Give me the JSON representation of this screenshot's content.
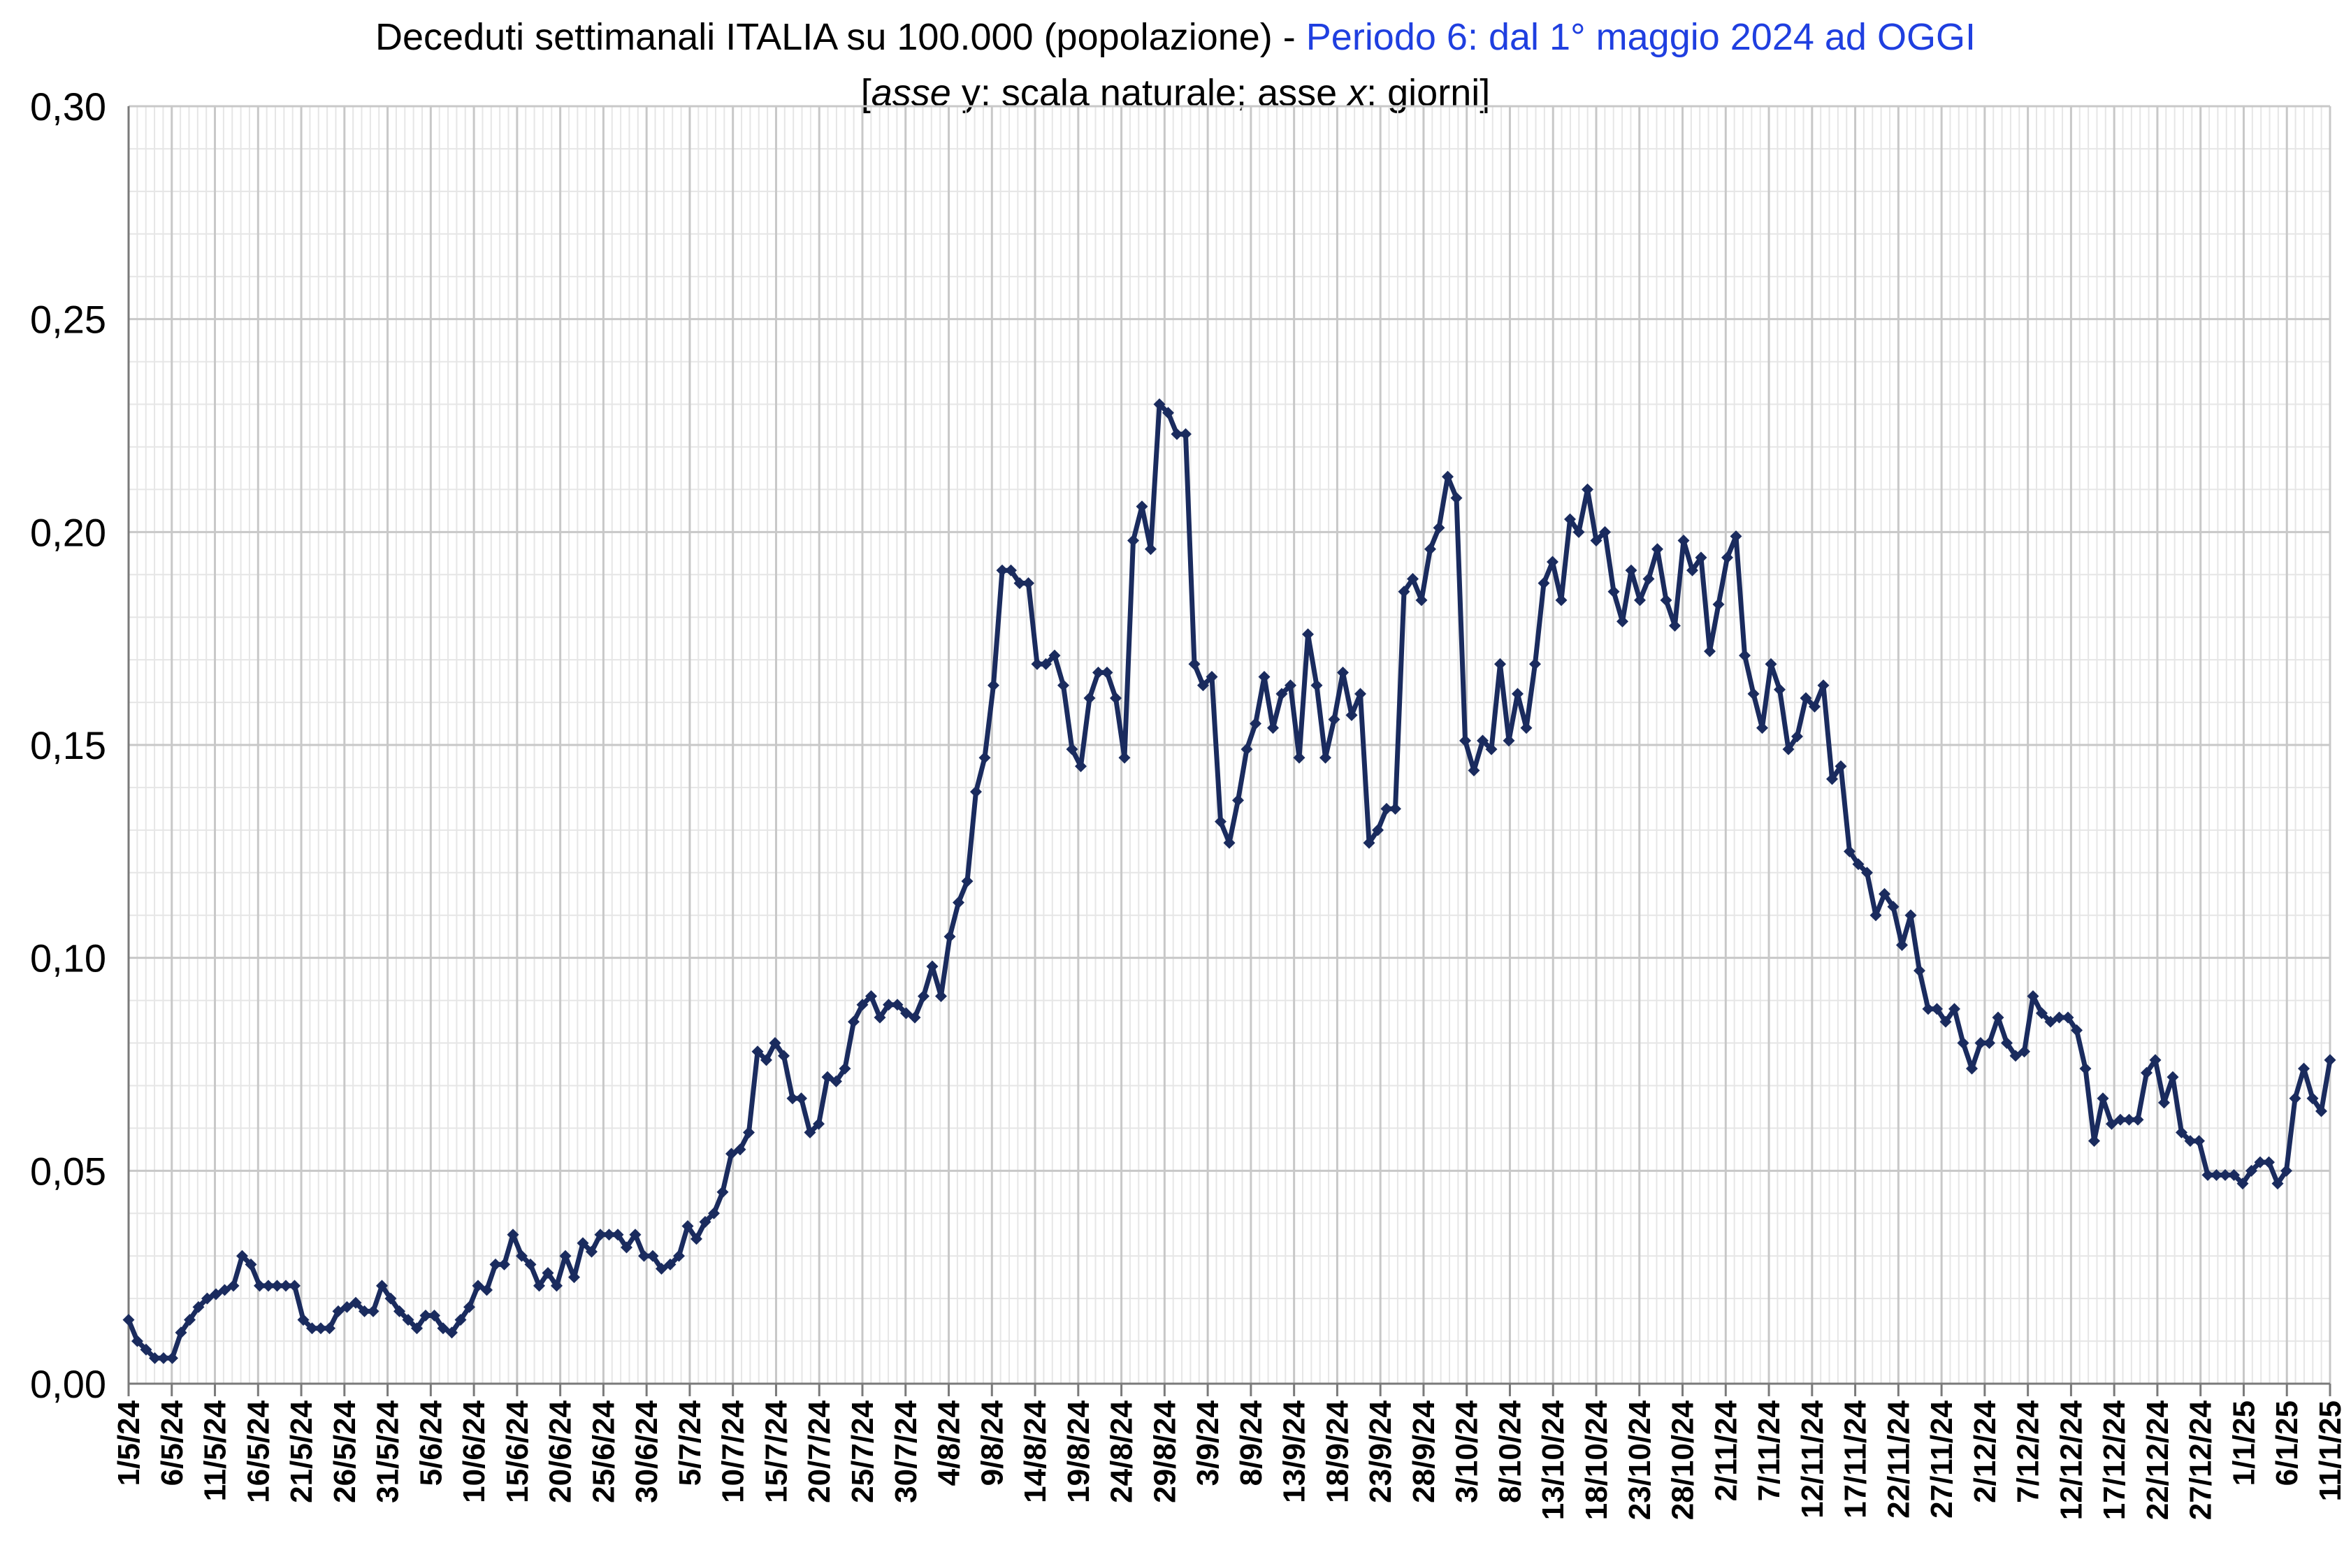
{
  "title": {
    "line1_main": "Deceduti settimanali ITALIA su 100.000 (popolazione) - ",
    "line1_accent": "Periodo 6: dal 1° maggio 2024 ad OGGI",
    "line2_open": "[",
    "line2_asse_y": "asse",
    "line2_mid": " y: scala naturale; asse ",
    "line2_x": "x",
    "line2_end": ": giorni]"
  },
  "colors": {
    "line": "#1a2b5e",
    "accent": "#1f3fe0",
    "grid_major": "#c8c8c8",
    "grid_minor": "#e6e6e6",
    "axis": "#7a7a7a"
  },
  "chart_data": {
    "type": "line",
    "xlabel": "",
    "ylabel": "",
    "x_start": "1/5/24",
    "x_end": "11/1/25",
    "ylim": [
      0,
      0.3
    ],
    "grid": true,
    "y_ticks": [
      "0,00",
      "0,05",
      "0,10",
      "0,15",
      "0,20",
      "0,25",
      "0,30"
    ],
    "x_ticks": [
      "1/5/24",
      "6/5/24",
      "11/5/24",
      "16/5/24",
      "21/5/24",
      "26/5/24",
      "31/5/24",
      "5/6/24",
      "10/6/24",
      "15/6/24",
      "20/6/24",
      "25/6/24",
      "30/6/24",
      "5/7/24",
      "10/7/24",
      "15/7/24",
      "20/7/24",
      "25/7/24",
      "30/7/24",
      "4/8/24",
      "9/8/24",
      "14/8/24",
      "19/8/24",
      "24/8/24",
      "29/8/24",
      "3/9/24",
      "8/9/24",
      "13/9/24",
      "18/9/24",
      "23/9/24",
      "28/9/24",
      "3/10/24",
      "8/10/24",
      "13/10/24",
      "18/10/24",
      "23/10/24",
      "28/10/24",
      "2/11/24",
      "7/11/24",
      "12/11/24",
      "17/11/24",
      "22/11/24",
      "27/11/24",
      "2/12/24",
      "7/12/24",
      "12/12/24",
      "17/12/24",
      "22/12/24",
      "27/12/24",
      "1/1/25",
      "6/1/25",
      "11/1/25"
    ],
    "series": [
      {
        "values": [
          0.015,
          0.01,
          0.008,
          0.006,
          0.006,
          0.006,
          0.012,
          0.015,
          0.018,
          0.02,
          0.021,
          0.022,
          0.023,
          0.03,
          0.028,
          0.023,
          0.023,
          0.023,
          0.023,
          0.023,
          0.015,
          0.013,
          0.013,
          0.013,
          0.017,
          0.018,
          0.019,
          0.017,
          0.017,
          0.023,
          0.02,
          0.017,
          0.015,
          0.013,
          0.016,
          0.016,
          0.013,
          0.012,
          0.015,
          0.018,
          0.023,
          0.022,
          0.028,
          0.028,
          0.035,
          0.03,
          0.028,
          0.023,
          0.026,
          0.023,
          0.03,
          0.025,
          0.033,
          0.031,
          0.035,
          0.035,
          0.035,
          0.032,
          0.035,
          0.03,
          0.03,
          0.027,
          0.028,
          0.03,
          0.037,
          0.034,
          0.038,
          0.04,
          0.045,
          0.054,
          0.055,
          0.059,
          0.078,
          0.076,
          0.08,
          0.077,
          0.067,
          0.067,
          0.059,
          0.061,
          0.072,
          0.071,
          0.074,
          0.085,
          0.089,
          0.091,
          0.086,
          0.089,
          0.089,
          0.087,
          0.086,
          0.091,
          0.098,
          0.091,
          0.105,
          0.113,
          0.118,
          0.139,
          0.147,
          0.164,
          0.191,
          0.191,
          0.188,
          0.188,
          0.169,
          0.169,
          0.171,
          0.164,
          0.149,
          0.145,
          0.161,
          0.167,
          0.167,
          0.161,
          0.147,
          0.198,
          0.206,
          0.196,
          0.23,
          0.228,
          0.223,
          0.223,
          0.169,
          0.164,
          0.166,
          0.132,
          0.127,
          0.137,
          0.149,
          0.155,
          0.166,
          0.154,
          0.162,
          0.164,
          0.147,
          0.176,
          0.164,
          0.147,
          0.156,
          0.167,
          0.157,
          0.162,
          0.127,
          0.13,
          0.135,
          0.135,
          0.186,
          0.189,
          0.184,
          0.196,
          0.201,
          0.213,
          0.208,
          0.151,
          0.144,
          0.151,
          0.149,
          0.169,
          0.151,
          0.162,
          0.154,
          0.169,
          0.188,
          0.193,
          0.184,
          0.203,
          0.2,
          0.21,
          0.198,
          0.2,
          0.186,
          0.179,
          0.191,
          0.184,
          0.189,
          0.196,
          0.184,
          0.178,
          0.198,
          0.191,
          0.194,
          0.172,
          0.183,
          0.194,
          0.199,
          0.171,
          0.162,
          0.154,
          0.169,
          0.163,
          0.149,
          0.152,
          0.161,
          0.159,
          0.164,
          0.142,
          0.145,
          0.125,
          0.122,
          0.12,
          0.11,
          0.115,
          0.112,
          0.103,
          0.11,
          0.097,
          0.088,
          0.088,
          0.085,
          0.088,
          0.08,
          0.074,
          0.08,
          0.08,
          0.086,
          0.08,
          0.077,
          0.078,
          0.091,
          0.087,
          0.085,
          0.086,
          0.086,
          0.083,
          0.074,
          0.057,
          0.067,
          0.061,
          0.062,
          0.062,
          0.062,
          0.073,
          0.076,
          0.066,
          0.072,
          0.059,
          0.057,
          0.057,
          0.049,
          0.049,
          0.049,
          0.049,
          0.047,
          0.05,
          0.052,
          0.052,
          0.047,
          0.05,
          0.067,
          0.074,
          0.067,
          0.064,
          0.076
        ]
      }
    ]
  }
}
